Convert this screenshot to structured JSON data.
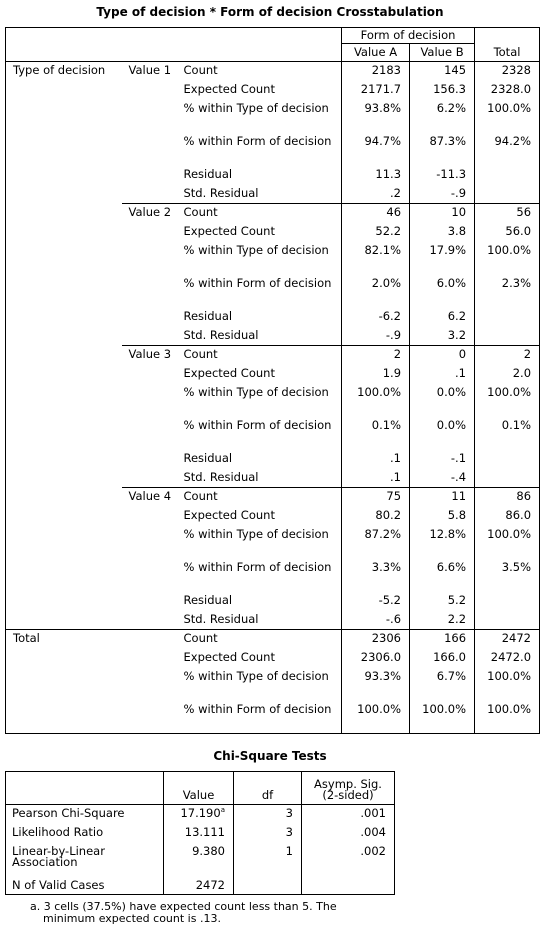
{
  "crosstab": {
    "title": "Type of decision * Form of decision Crosstabulation",
    "column_group_label": "Form of decision",
    "col_a": "Value A",
    "col_b": "Value B",
    "col_total": "Total",
    "row_var": "Type of decision",
    "labels": {
      "count": "Count",
      "expected": "Expected Count",
      "within_type": "% within Type of decision",
      "within_form": "% within Form of decision",
      "residual": "Residual",
      "std_residual": "Std. Residual"
    },
    "groups": [
      {
        "name": "Value 1",
        "count": [
          "2183",
          "145",
          "2328"
        ],
        "expected": [
          "2171.7",
          "156.3",
          "2328.0"
        ],
        "within_type": [
          "93.8%",
          "6.2%",
          "100.0%"
        ],
        "within_form": [
          "94.7%",
          "87.3%",
          "94.2%"
        ],
        "residual": [
          "11.3",
          "-11.3"
        ],
        "std_residual": [
          ".2",
          "-.9"
        ]
      },
      {
        "name": "Value 2",
        "count": [
          "46",
          "10",
          "56"
        ],
        "expected": [
          "52.2",
          "3.8",
          "56.0"
        ],
        "within_type": [
          "82.1%",
          "17.9%",
          "100.0%"
        ],
        "within_form": [
          "2.0%",
          "6.0%",
          "2.3%"
        ],
        "residual": [
          "-6.2",
          "6.2"
        ],
        "std_residual": [
          "-.9",
          "3.2"
        ]
      },
      {
        "name": "Value 3",
        "count": [
          "2",
          "0",
          "2"
        ],
        "expected": [
          "1.9",
          ".1",
          "2.0"
        ],
        "within_type": [
          "100.0%",
          "0.0%",
          "100.0%"
        ],
        "within_form": [
          "0.1%",
          "0.0%",
          "0.1%"
        ],
        "residual": [
          ".1",
          "-.1"
        ],
        "std_residual": [
          ".1",
          "-.4"
        ]
      },
      {
        "name": "Value 4",
        "count": [
          "75",
          "11",
          "86"
        ],
        "expected": [
          "80.2",
          "5.8",
          "86.0"
        ],
        "within_type": [
          "87.2%",
          "12.8%",
          "100.0%"
        ],
        "within_form": [
          "3.3%",
          "6.6%",
          "3.5%"
        ],
        "residual": [
          "-5.2",
          "5.2"
        ],
        "std_residual": [
          "-.6",
          "2.2"
        ]
      }
    ],
    "total": {
      "name": "Total",
      "count": [
        "2306",
        "166",
        "2472"
      ],
      "expected": [
        "2306.0",
        "166.0",
        "2472.0"
      ],
      "within_type": [
        "93.3%",
        "6.7%",
        "100.0%"
      ],
      "within_form": [
        "100.0%",
        "100.0%",
        "100.0%"
      ]
    }
  },
  "chisq": {
    "title": "Chi-Square Tests",
    "headers": {
      "value": "Value",
      "df": "df",
      "sig": "Asymp. Sig. (2-sided)"
    },
    "rows": [
      {
        "label": "Pearson Chi-Square",
        "value": "17.190",
        "sup": "a",
        "df": "3",
        "sig": ".001"
      },
      {
        "label": "Likelihood Ratio",
        "value": "13.111",
        "sup": "",
        "df": "3",
        "sig": ".004"
      },
      {
        "label": "Linear-by-Linear Association",
        "value": "9.380",
        "sup": "",
        "df": "1",
        "sig": ".002"
      },
      {
        "label": "N of Valid Cases",
        "value": "2472",
        "sup": "",
        "df": "",
        "sig": ""
      }
    ],
    "footnote_line1": "a. 3 cells (37.5%) have expected count less than 5. The",
    "footnote_line2": "minimum expected count is .13."
  }
}
